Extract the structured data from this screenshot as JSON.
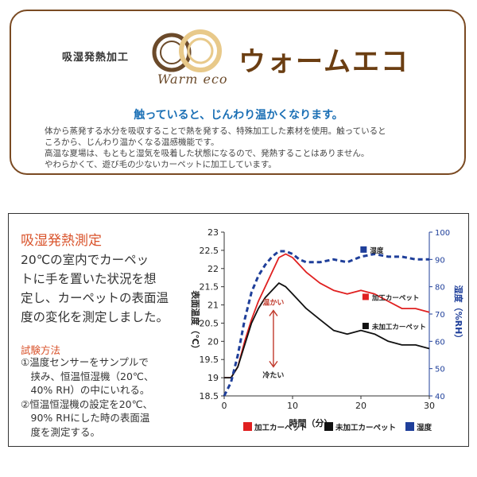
{
  "header": {
    "prefix": "吸湿発熱加工",
    "logo_script": "Warm eco",
    "brand_name": "ウォームエコ",
    "tagline": "触っていると、じんわり温かくなります。",
    "description_lines": [
      "体から蒸発する水分を吸収することで熱を発する、特殊加工した素材を使用。触っていると",
      "ころから、じんわり温かくなる温感機能です。",
      "高温な夏場は、もともと湿気を吸着した状態になるので、発熱することはありません。",
      "やわらかくて、遊び毛の少ないカーペットに加工しています。"
    ]
  },
  "measurement": {
    "title": "吸湿発熱測定",
    "body_lines": [
      "20℃の室内でカーペッ",
      "トに手を置いた状況を想",
      "定し、カーペットの表面温",
      "度の変化を測定しました。"
    ],
    "method_title": "試験方法",
    "steps": [
      "①温度センサーをサンプルで",
      "　挟み、恒温恒湿機（20℃、",
      "　40% RH）の中にいれる。",
      "②恒温恒湿機の設定を20℃、",
      "　90% RHにした時の表面温",
      "　度を測定する。"
    ]
  },
  "chart_data": {
    "type": "line",
    "xlabel": "時間（分）",
    "ylabel_left": "表面温度（℃）",
    "ylabel_right": "湿度（%RH）",
    "xlim": [
      0,
      30
    ],
    "ylim_left": [
      18.5,
      23
    ],
    "ylim_right": [
      40,
      100
    ],
    "x_ticks": [
      0,
      10,
      20,
      30
    ],
    "y_ticks_left": [
      18.5,
      19,
      19.5,
      20,
      20.5,
      21,
      21.5,
      22,
      22.5,
      23
    ],
    "y_ticks_right": [
      40,
      50,
      60,
      70,
      80,
      90,
      100
    ],
    "annotations": {
      "warm": "温かい",
      "cold": "冷たい"
    },
    "legend_placement": "bottom",
    "series": [
      {
        "name": "加工カーペット",
        "axis": "left",
        "color": "#e02020",
        "style": "solid",
        "x": [
          0,
          1,
          2,
          3,
          4,
          5,
          6,
          7,
          8,
          9,
          10,
          12,
          14,
          16,
          18,
          20,
          22,
          24,
          26,
          28,
          30
        ],
        "y": [
          19.0,
          19.0,
          19.3,
          20.0,
          20.6,
          21.1,
          21.5,
          21.9,
          22.3,
          22.4,
          22.3,
          21.9,
          21.6,
          21.4,
          21.3,
          21.4,
          21.3,
          21.1,
          20.9,
          20.9,
          20.8
        ]
      },
      {
        "name": "未加工カーペット",
        "axis": "left",
        "color": "#111111",
        "style": "solid",
        "x": [
          0,
          1,
          2,
          3,
          4,
          5,
          6,
          7,
          8,
          9,
          10,
          12,
          14,
          16,
          18,
          20,
          22,
          24,
          26,
          28,
          30
        ],
        "y": [
          19.0,
          19.0,
          19.3,
          19.9,
          20.5,
          20.9,
          21.2,
          21.4,
          21.6,
          21.5,
          21.3,
          20.9,
          20.6,
          20.3,
          20.2,
          20.3,
          20.2,
          20.0,
          19.9,
          19.9,
          19.8
        ]
      },
      {
        "name": "湿度",
        "axis": "right",
        "color": "#1f3f9a",
        "style": "dashed",
        "x": [
          0,
          1,
          2,
          3,
          4,
          5,
          6,
          7,
          8,
          9,
          10,
          11,
          12,
          14,
          16,
          18,
          20,
          22,
          24,
          26,
          28,
          30
        ],
        "y": [
          40,
          45,
          55,
          68,
          78,
          84,
          88,
          91,
          93,
          93,
          92,
          90,
          89,
          89,
          90,
          89,
          91,
          92,
          91,
          91,
          90,
          90
        ]
      }
    ]
  },
  "colors": {
    "brand_brown": "#6b3e12",
    "tagline_blue": "#1a6fb5",
    "accent_orange": "#d9532b"
  }
}
